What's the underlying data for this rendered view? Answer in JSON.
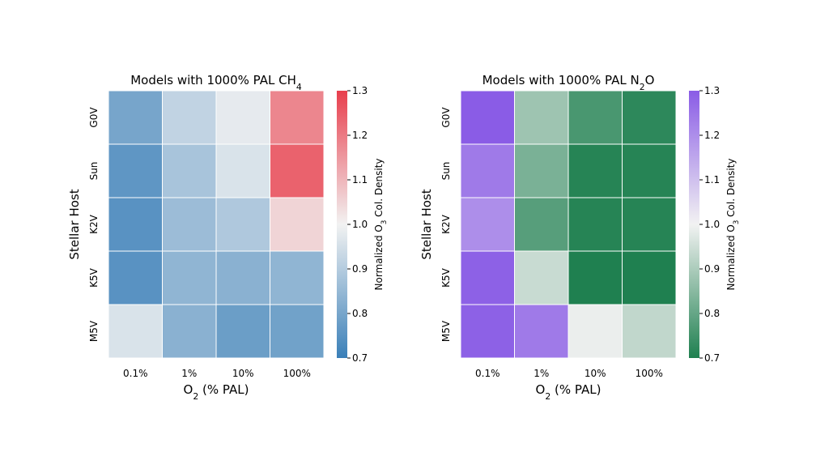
{
  "chart_data": [
    {
      "type": "heatmap",
      "title": "Models with 1000% PAL CH",
      "title_sub": "4",
      "xlabel": "O",
      "xlabel_sub": "2",
      "xlabel_rest": " (% PAL)",
      "ylabel": "Stellar Host",
      "x_categories": [
        "0.1%",
        "1%",
        "10%",
        "100%"
      ],
      "y_categories": [
        "G0V",
        "Sun",
        "K2V",
        "K5V",
        "M5V"
      ],
      "values": [
        [
          0.8,
          0.92,
          0.98,
          1.18
        ],
        [
          0.76,
          0.88,
          0.96,
          1.24
        ],
        [
          0.75,
          0.86,
          0.89,
          1.05
        ],
        [
          0.75,
          0.84,
          0.83,
          0.84
        ],
        [
          0.96,
          0.83,
          0.78,
          0.79
        ]
      ],
      "colorbar": {
        "label": "Normalized O",
        "label_sub": "3",
        "label_rest": " Col. Density",
        "min": 0.7,
        "max": 1.3,
        "ticks": [
          "0.7",
          "0.8",
          "0.9",
          "1.0",
          "1.1",
          "1.2",
          "1.3"
        ],
        "low_color": "#3a7fb8",
        "mid_color": "#f2f2f2",
        "high_color": "#e83e4c"
      }
    },
    {
      "type": "heatmap",
      "title": "Models with 1000% PAL N",
      "title_sub": "2",
      "title_rest": "O",
      "xlabel": "O",
      "xlabel_sub": "2",
      "xlabel_rest": " (% PAL)",
      "ylabel": "Stellar Host",
      "x_categories": [
        "0.1%",
        "1%",
        "10%",
        "100%"
      ],
      "y_categories": [
        "G0V",
        "Sun",
        "K2V",
        "K5V",
        "M5V"
      ],
      "values": [
        [
          1.3,
          0.88,
          0.76,
          0.72
        ],
        [
          1.24,
          0.83,
          0.71,
          0.71
        ],
        [
          1.2,
          0.78,
          0.71,
          0.71
        ],
        [
          1.29,
          0.94,
          0.7,
          0.7
        ],
        [
          1.29,
          1.24,
          0.99,
          0.93
        ]
      ],
      "colorbar": {
        "label": "Normalized O",
        "label_sub": "3",
        "label_rest": " Col. Density",
        "min": 0.7,
        "max": 1.3,
        "ticks": [
          "0.7",
          "0.8",
          "0.9",
          "1.0",
          "1.1",
          "1.2",
          "1.3"
        ],
        "low_color": "#1f8050",
        "mid_color": "#f2f2f2",
        "high_color": "#8a5ce6"
      }
    }
  ]
}
